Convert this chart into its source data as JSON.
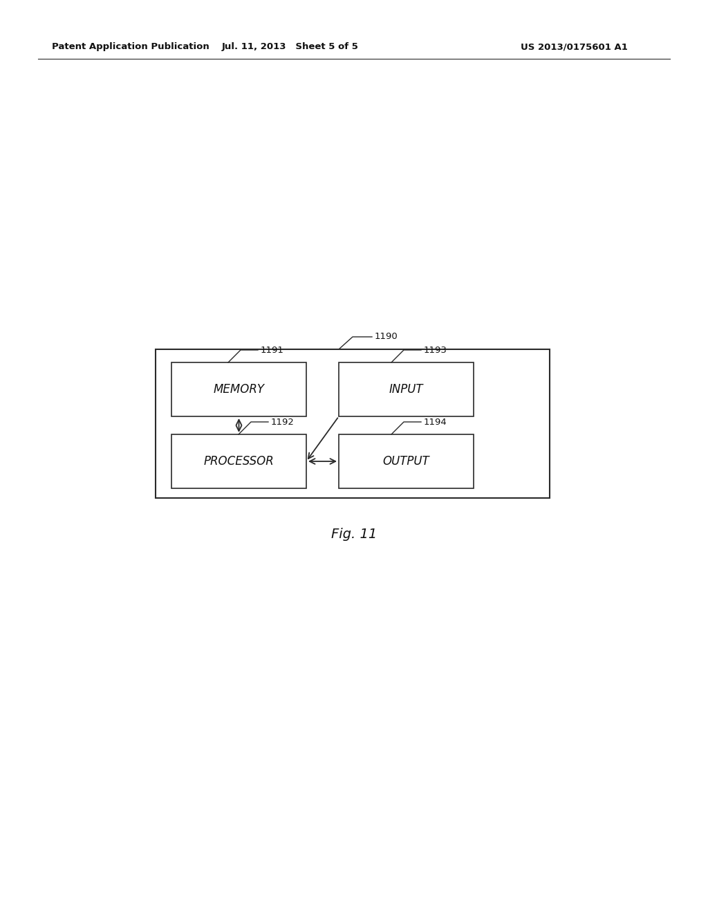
{
  "bg_color": "#ffffff",
  "header_left": "Patent Application Publication",
  "header_mid": "Jul. 11, 2013   Sheet 5 of 5",
  "header_right": "US 2013/0175601 A1",
  "fig_label": "Fig. 11",
  "label_1190": "1190",
  "label_1191": "1191",
  "label_1192": "1192",
  "label_1193": "1193",
  "label_1194": "1194",
  "box_color": "#ffffff",
  "box_edge_color": "#2a2a2a",
  "text_color": "#111111",
  "line_color": "#2a2a2a",
  "outer_box_color": "#ffffff"
}
